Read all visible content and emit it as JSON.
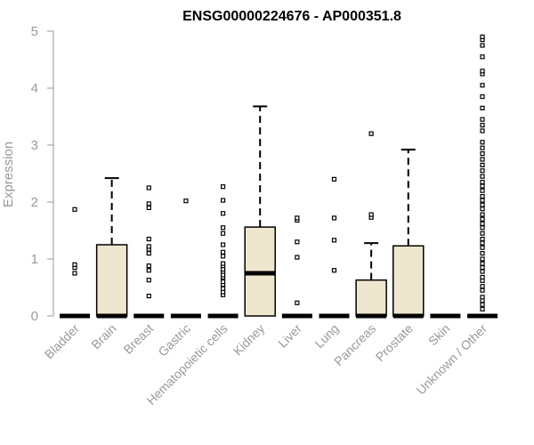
{
  "chart_data": {
    "type": "box",
    "title": "ENSG00000224676 - AP000351.8",
    "xlabel": "",
    "ylabel": "Expression",
    "ylim": [
      0,
      5
    ],
    "yticks": [
      0,
      1,
      2,
      3,
      4,
      5
    ],
    "grid": false,
    "box_fill": "#efe6cf",
    "categories": [
      "Bladder",
      "Brain",
      "Breast",
      "Gastric",
      "Hematopoietic cells",
      "Kidney",
      "Liver",
      "Lung",
      "Pancreas",
      "Prostate",
      "Skin",
      "Unknown / Other"
    ],
    "boxes": [
      {
        "q1": 0,
        "median": 0,
        "q3": 0,
        "whisker_low": 0,
        "whisker_high": 0,
        "outliers": [
          0.75,
          0.85,
          0.9,
          1.87
        ]
      },
      {
        "q1": 0,
        "median": 0,
        "q3": 1.25,
        "whisker_low": 0,
        "whisker_high": 2.42,
        "outliers": []
      },
      {
        "q1": 0,
        "median": 0,
        "q3": 0,
        "whisker_low": 0,
        "whisker_high": 0,
        "outliers": [
          0.35,
          0.63,
          0.8,
          0.88,
          1.1,
          1.17,
          1.22,
          1.35,
          1.9,
          1.97,
          2.25
        ]
      },
      {
        "q1": 0,
        "median": 0,
        "q3": 0,
        "whisker_low": 0,
        "whisker_high": 0,
        "outliers": [
          2.02
        ]
      },
      {
        "q1": 0,
        "median": 0,
        "q3": 0,
        "whisker_low": 0,
        "whisker_high": 0,
        "outliers": [
          0.37,
          0.42,
          0.48,
          0.55,
          0.6,
          0.68,
          0.72,
          0.78,
          0.82,
          0.88,
          0.92,
          1.05,
          1.12,
          1.25,
          1.45,
          1.55,
          1.8,
          2.03,
          2.27
        ]
      },
      {
        "q1": 0,
        "median": 0.75,
        "q3": 1.56,
        "whisker_low": 0,
        "whisker_high": 3.68,
        "outliers": []
      },
      {
        "q1": 0,
        "median": 0,
        "q3": 0,
        "whisker_low": 0,
        "whisker_high": 0,
        "outliers": [
          0.23,
          1.03,
          1.3,
          1.68,
          1.72
        ]
      },
      {
        "q1": 0,
        "median": 0,
        "q3": 0,
        "whisker_low": 0,
        "whisker_high": 0,
        "outliers": [
          0.8,
          1.33,
          1.72,
          2.4
        ]
      },
      {
        "q1": 0,
        "median": 0,
        "q3": 0.63,
        "whisker_low": 0,
        "whisker_high": 1.28,
        "outliers": [
          1.73,
          1.78,
          3.2
        ]
      },
      {
        "q1": 0,
        "median": 0,
        "q3": 1.23,
        "whisker_low": 0,
        "whisker_high": 2.92,
        "outliers": []
      },
      {
        "q1": 0,
        "median": 0,
        "q3": 0,
        "whisker_low": 0,
        "whisker_high": 0,
        "outliers": []
      },
      {
        "q1": 0,
        "median": 0,
        "q3": 0,
        "whisker_low": 0,
        "whisker_high": 0,
        "outliers": [
          0.12,
          0.2,
          0.27,
          0.33,
          0.45,
          0.52,
          0.62,
          0.68,
          0.78,
          0.85,
          0.92,
          1.0,
          1.1,
          1.2,
          1.28,
          1.35,
          1.45,
          1.55,
          1.62,
          1.7,
          1.78,
          1.88,
          1.95,
          2.03,
          2.1,
          2.2,
          2.28,
          2.35,
          2.45,
          2.55,
          2.65,
          2.75,
          2.85,
          2.95,
          3.05,
          3.25,
          3.35,
          3.45,
          3.65,
          3.85,
          4.05,
          4.25,
          4.3,
          4.55,
          4.75,
          4.85,
          4.9
        ]
      }
    ]
  }
}
